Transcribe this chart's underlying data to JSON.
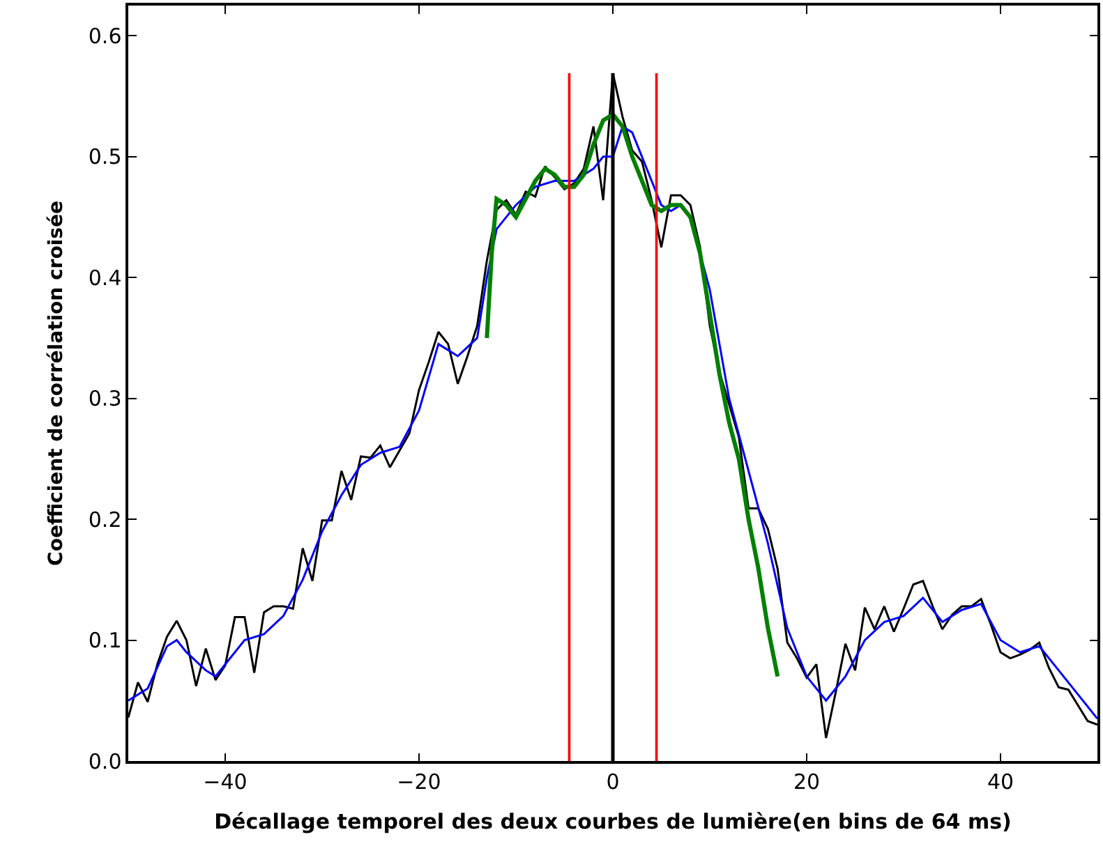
{
  "chart_data": {
    "type": "line",
    "xlabel": "Décallage temporel des deux courbes de lumière(en bins de 64 ms)",
    "ylabel": "Coefficient de corrélation croisée",
    "xlim": [
      -50,
      50
    ],
    "ylim": [
      0,
      0.625
    ],
    "xticks": [
      {
        "value": -40,
        "label": "−40"
      },
      {
        "value": -20,
        "label": "−20"
      },
      0,
      20,
      40
    ],
    "yticks": [
      {
        "value": 0,
        "label": "0.0"
      },
      0.1,
      0.2,
      0.3,
      0.4,
      0.5,
      0.6
    ],
    "marker": "none",
    "line_style": "solid",
    "ref_lines": [
      {
        "axis": "x",
        "value": -4.5,
        "color": "#ff0000"
      },
      {
        "axis": "x",
        "value": 4.5,
        "color": "#ff0000"
      },
      {
        "axis": "x",
        "value": 0,
        "color": "#000000"
      }
    ],
    "series": [
      {
        "color": "#000000",
        "x": [
          -50,
          -49,
          -48,
          -47,
          -46,
          -45,
          -44,
          -43,
          -42,
          -41,
          -40,
          -39,
          -38,
          -37,
          -36,
          -35,
          -34,
          -33,
          -32,
          -31,
          -30,
          -29,
          -28,
          -27,
          -26,
          -25,
          -24,
          -23,
          -22,
          -21,
          -20,
          -19,
          -18,
          -17,
          -16,
          -15,
          -14,
          -13,
          -12,
          -11,
          -10,
          -9,
          -8,
          -7,
          -6,
          -5,
          -4,
          -3,
          -2,
          -1,
          0,
          1,
          2,
          3,
          4,
          5,
          6,
          7,
          8,
          9,
          10,
          11,
          12,
          13,
          14,
          15,
          16,
          17,
          18,
          19,
          20,
          21,
          22,
          23,
          24,
          25,
          26,
          27,
          28,
          29,
          30,
          31,
          32,
          33,
          34,
          35,
          36,
          37,
          38,
          39,
          40,
          41,
          42,
          43,
          44,
          45,
          46,
          47,
          48,
          49,
          50
        ],
        "values": [
          0.036,
          0.065,
          0.049,
          0.08,
          0.103,
          0.116,
          0.1,
          0.062,
          0.093,
          0.067,
          0.079,
          0.119,
          0.119,
          0.073,
          0.123,
          0.128,
          0.128,
          0.126,
          0.176,
          0.149,
          0.199,
          0.199,
          0.24,
          0.216,
          0.252,
          0.251,
          0.261,
          0.243,
          0.257,
          0.271,
          0.307,
          0.33,
          0.355,
          0.345,
          0.312,
          0.335,
          0.36,
          0.414,
          0.456,
          0.464,
          0.452,
          0.471,
          0.467,
          0.492,
          0.483,
          0.473,
          0.478,
          0.49,
          0.525,
          0.464,
          0.569,
          0.533,
          0.505,
          0.496,
          0.464,
          0.425,
          0.468,
          0.468,
          0.46,
          0.425,
          0.36,
          0.322,
          0.295,
          0.268,
          0.209,
          0.209,
          0.192,
          0.159,
          0.098,
          0.085,
          0.069,
          0.08,
          0.019,
          0.057,
          0.097,
          0.075,
          0.127,
          0.109,
          0.128,
          0.107,
          0.126,
          0.146,
          0.149,
          0.128,
          0.109,
          0.121,
          0.128,
          0.128,
          0.134,
          0.113,
          0.09,
          0.085,
          0.088,
          0.092,
          0.098,
          0.077,
          0.061,
          0.059,
          0.046,
          0.033,
          0.03
        ]
      },
      {
        "color": "#0000ff",
        "x": [
          -50,
          -48,
          -46,
          -45,
          -44,
          -42,
          -41,
          -40,
          -38,
          -36,
          -34,
          -32,
          -30,
          -28,
          -26,
          -24,
          -22,
          -20,
          -18,
          -16,
          -14,
          -13,
          -12,
          -10,
          -8,
          -6,
          -4,
          -2,
          -1,
          0,
          1,
          2,
          4,
          5,
          6,
          7,
          8,
          10,
          12,
          14,
          16,
          18,
          20,
          22,
          24,
          26,
          28,
          30,
          32,
          34,
          36,
          38,
          40,
          42,
          44,
          46,
          48,
          50
        ],
        "values": [
          0.05,
          0.06,
          0.095,
          0.1,
          0.09,
          0.075,
          0.07,
          0.08,
          0.1,
          0.105,
          0.12,
          0.15,
          0.19,
          0.22,
          0.245,
          0.255,
          0.26,
          0.29,
          0.345,
          0.335,
          0.35,
          0.4,
          0.44,
          0.46,
          0.475,
          0.48,
          0.48,
          0.49,
          0.5,
          0.5,
          0.525,
          0.52,
          0.48,
          0.46,
          0.455,
          0.46,
          0.45,
          0.39,
          0.3,
          0.24,
          0.18,
          0.11,
          0.07,
          0.05,
          0.07,
          0.1,
          0.115,
          0.12,
          0.135,
          0.115,
          0.125,
          0.13,
          0.1,
          0.09,
          0.095,
          0.075,
          0.055,
          0.035
        ]
      },
      {
        "color": "#008000",
        "x": [
          -13,
          -12.5,
          -12,
          -11,
          -10,
          -9,
          -8,
          -7,
          -6,
          -5,
          -4,
          -3,
          -2,
          -1,
          0,
          1,
          2,
          3,
          4,
          5,
          6,
          7,
          8,
          9,
          10,
          11,
          12,
          13,
          14,
          15,
          16,
          17
        ],
        "values": [
          0.35,
          0.42,
          0.465,
          0.46,
          0.45,
          0.465,
          0.48,
          0.49,
          0.485,
          0.475,
          0.475,
          0.485,
          0.51,
          0.53,
          0.535,
          0.525,
          0.5,
          0.48,
          0.46,
          0.455,
          0.46,
          0.46,
          0.45,
          0.42,
          0.37,
          0.32,
          0.28,
          0.25,
          0.2,
          0.16,
          0.11,
          0.07
        ]
      }
    ]
  }
}
